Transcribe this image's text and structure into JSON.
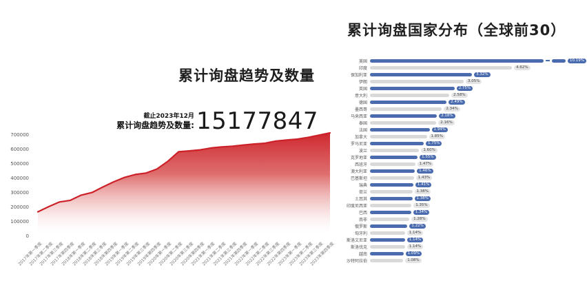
{
  "left_chart": {
    "title": "累计询盘趋势及数量",
    "asof_label": "截止2023年12月",
    "stat_label": "累计询盘趋势及数量:",
    "stat_value": "15177847"
  },
  "right_chart": {
    "title": "累计询盘国家分布（全球前30）"
  },
  "colors": {
    "blue": "#4a6bae",
    "gray_bar": "#d9d9d9",
    "badge_gray_bg": "#e4e4e4",
    "red_line": "#cc2128",
    "title_text": "#1f1f1f"
  },
  "chart_data": [
    {
      "type": "area",
      "title": "累计询盘趋势及数量",
      "xlabel": "",
      "ylabel": "",
      "ylim": [
        0,
        700000
      ],
      "yticks": [
        0,
        100000,
        200000,
        300000,
        400000,
        500000,
        600000,
        700000
      ],
      "grid": false,
      "x": [
        "2017年第一季度",
        "2017年第二季度",
        "2017年第三季度",
        "2017年第四季度",
        "2018年第一季度",
        "2018年第二季度",
        "2018年第三季度",
        "2018年第四季度",
        "2019年第一季度",
        "2019年第二季度",
        "2019年第三季度",
        "2019年第四季度",
        "2020年第一季度",
        "2020年第二季度",
        "2020年第三季度",
        "2020年第四季度",
        "2021年第一季度",
        "2021年第二季度",
        "2021年第三季度",
        "2021年第四季度",
        "2022年第一季度",
        "2022年第二季度",
        "2022年第三季度",
        "2022年第四季度",
        "2023年第一季度",
        "2023年第二季度",
        "2023年第三季度",
        "2023年第四季度"
      ],
      "values": [
        165000,
        200000,
        232000,
        243000,
        278000,
        296000,
        333000,
        368000,
        398000,
        418000,
        428000,
        455000,
        507000,
        572000,
        578000,
        585000,
        598000,
        605000,
        610000,
        618000,
        625000,
        630000,
        645000,
        652000,
        658000,
        670000,
        685000,
        700000
      ]
    },
    {
      "type": "bar",
      "orientation": "horizontal",
      "title": "累计询盘国家分布（全球前30）",
      "legend": false,
      "truncated_index": 0,
      "categories": [
        "美国",
        "印度",
        "保加利亚",
        "伊朗",
        "英国",
        "意大利",
        "德国",
        "墨西哥",
        "马来西亚",
        "泰国",
        "法国",
        "加拿大",
        "罗马尼亚",
        "波兰",
        "克罗地亚",
        "西班牙",
        "澳大利亚",
        "巴基斯坦",
        "瑞典",
        "荷兰",
        "土耳其",
        "印度尼西亚",
        "巴西",
        "南非",
        "俄罗斯",
        "匈牙利",
        "斯洛文尼亚",
        "斯洛伐克",
        "越南",
        "沙特阿拉伯"
      ],
      "values": [
        10.19,
        4.62,
        3.32,
        3.05,
        2.75,
        2.58,
        2.49,
        2.34,
        2.18,
        2.16,
        1.94,
        1.85,
        1.75,
        1.6,
        1.55,
        1.47,
        1.46,
        1.43,
        1.41,
        1.38,
        1.38,
        1.35,
        1.34,
        1.28,
        1.22,
        1.14,
        1.14,
        1.14,
        1.09,
        1.08
      ],
      "labels": [
        "10.19%",
        "4.62%",
        "3.32%",
        "3.05%",
        "2.75%",
        "2.58%",
        "2.49%",
        "2.34%",
        "2.18%",
        "2.16%",
        "1.94%",
        "1.85%",
        "1.75%",
        "1.60%",
        "1.55%",
        "1.47%",
        "1.46%",
        "1.43%",
        "1.41%",
        "1.38%",
        "1.38%",
        "1.35%",
        "1.34%",
        "1.28%",
        "1.22%",
        "1.14%",
        "1.14%",
        "1.14%",
        "1.09%",
        "1.08%"
      ]
    }
  ]
}
